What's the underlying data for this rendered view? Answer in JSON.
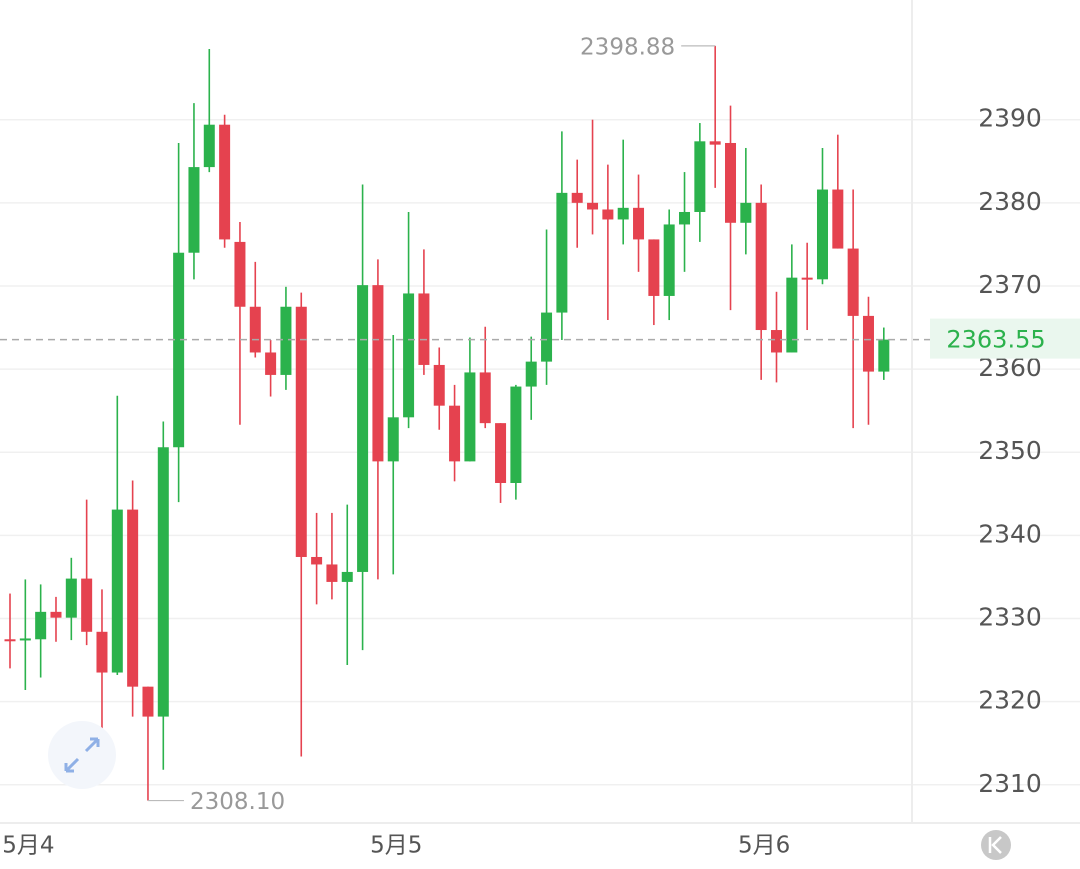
{
  "chart_data": {
    "type": "candlestick",
    "categories": [
      null,
      "5月4",
      null,
      null,
      null,
      null,
      null,
      null,
      null,
      null,
      null,
      null,
      null,
      null,
      null,
      null,
      null,
      null,
      null,
      null,
      null,
      null,
      null,
      null,
      null,
      "5月5",
      null,
      null,
      null,
      null,
      null,
      null,
      null,
      null,
      null,
      null,
      null,
      null,
      null,
      null,
      null,
      null,
      null,
      null,
      null,
      null,
      null,
      null,
      null,
      "5月6",
      null,
      null,
      null,
      null,
      null,
      null,
      null,
      null
    ],
    "open": [
      2327.5,
      2327.5,
      2327.5,
      2330.8,
      2330.1,
      2334.8,
      2328.4,
      2323.5,
      2343.1,
      2321.8,
      2318.2,
      2350.6,
      2374,
      2384.3,
      2389.4,
      2375.3,
      2367.5,
      2362,
      2359.3,
      2367.5,
      2337.4,
      2336.5,
      2334.4,
      2335.6,
      2370.1,
      2348.9,
      2354.2,
      2369.1,
      2360.5,
      2355.6,
      2348.9,
      2359.6,
      2353.5,
      2346.3,
      2357.9,
      2360.9,
      2366.8,
      2381.2,
      2380,
      2379.2,
      2378,
      2379.4,
      2375.6,
      2368.8,
      2377.4,
      2378.9,
      2387.4,
      2387.2,
      2377.6,
      2380,
      2364.7,
      2362,
      2371,
      2370.8,
      2381.6,
      2374.5,
      2366.4,
      2359.7
    ],
    "high": [
      2333,
      2334.7,
      2334.1,
      2332.6,
      2337.3,
      2344.3,
      2333.5,
      2356.8,
      2346.6,
      2321.8,
      2353.7,
      2387.2,
      2392,
      2398.5,
      2390.6,
      2377.7,
      2372.9,
      2363.5,
      2369.9,
      2369.2,
      2342.7,
      2342.7,
      2343.7,
      2382.2,
      2373.2,
      2364.1,
      2378.9,
      2374.4,
      2362.6,
      2358.1,
      2363.8,
      2365.1,
      2353.5,
      2358.1,
      2363.9,
      2376.8,
      2388.6,
      2385.2,
      2390,
      2384.6,
      2387.6,
      2383.4,
      2375.6,
      2379.2,
      2383.7,
      2389.6,
      2398.88,
      2391.7,
      2386.6,
      2382.2,
      2369.3,
      2375,
      2375.2,
      2386.6,
      2388.2,
      2381.6,
      2368.7,
      2365
    ],
    "low": [
      2324,
      2321.4,
      2322.9,
      2327.2,
      2327.4,
      2326.8,
      2313.4,
      2323.2,
      2318.2,
      2308.1,
      2311.8,
      2344,
      2370.8,
      2383.7,
      2374.6,
      2353.3,
      2361.4,
      2356.7,
      2357.5,
      2313.4,
      2331.7,
      2332.3,
      2324.4,
      2326.2,
      2334.7,
      2335.3,
      2352.9,
      2359.3,
      2352.7,
      2346.5,
      2348.9,
      2352.9,
      2343.9,
      2344.3,
      2353.9,
      2358.1,
      2363.5,
      2374.6,
      2376.2,
      2365.9,
      2375,
      2371.7,
      2365.3,
      2365.9,
      2371.7,
      2375.3,
      2381.8,
      2367.1,
      2373.8,
      2358.7,
      2358.4,
      2362,
      2364.7,
      2370.2,
      2374.5,
      2352.9,
      2353.3,
      2358.7
    ],
    "close": [
      2327.4,
      2327.6,
      2330.8,
      2330.1,
      2334.8,
      2328.4,
      2323.5,
      2343.1,
      2321.8,
      2318.2,
      2350.6,
      2374,
      2384.3,
      2389.4,
      2375.6,
      2367.5,
      2362,
      2359.3,
      2367.5,
      2337.4,
      2336.5,
      2334.4,
      2335.6,
      2370.1,
      2348.9,
      2354.2,
      2369.1,
      2360.5,
      2355.6,
      2348.9,
      2359.6,
      2353.5,
      2346.3,
      2357.9,
      2360.9,
      2366.8,
      2381.2,
      2380,
      2379.2,
      2378,
      2379.4,
      2375.6,
      2368.8,
      2377.4,
      2378.9,
      2387.4,
      2387,
      2377.6,
      2380,
      2364.7,
      2362,
      2371,
      2370.8,
      2381.6,
      2374.5,
      2366.4,
      2359.7,
      2363.55
    ],
    "up_color": "#2bb24c",
    "down_color": "#e5424f",
    "ylim": [
      2305.4,
      2404.4
    ],
    "yticks": [
      2310,
      2320,
      2330,
      2340,
      2350,
      2360,
      2370,
      2380,
      2390
    ],
    "grid": true,
    "last_price": 2363.55,
    "max_label": "2398.88",
    "min_label": "2308.10"
  }
}
